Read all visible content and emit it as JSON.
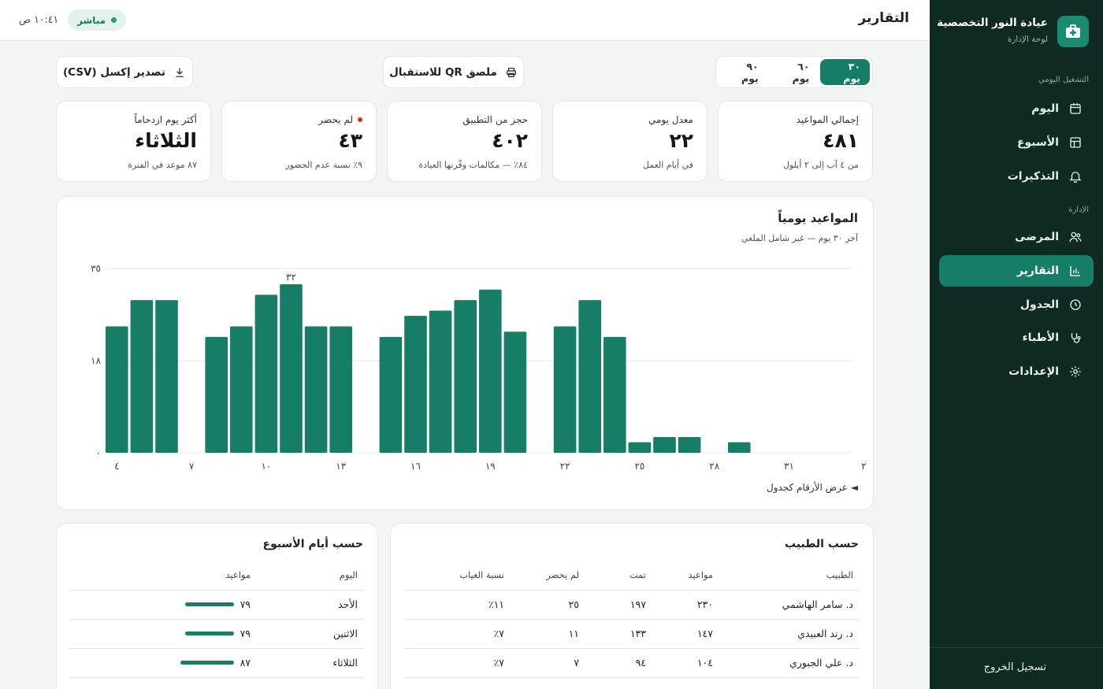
{
  "sidebar": {
    "brand_title": "عيادة النور التخصصية",
    "brand_subtitle": "لوحة الإدارة",
    "section_daily": "التشغيل اليومي",
    "section_admin": "الإدارة",
    "items": [
      {
        "label": "اليوم",
        "icon": "calendar-icon"
      },
      {
        "label": "الأسبوع",
        "icon": "week-grid-icon"
      },
      {
        "label": "التذكيرات",
        "icon": "bell-icon"
      },
      {
        "label": "المرضى",
        "icon": "users-icon"
      },
      {
        "label": "التقارير",
        "icon": "bar-chart-icon",
        "active": true
      },
      {
        "label": "الجدول",
        "icon": "clock-icon"
      },
      {
        "label": "الأطباء",
        "icon": "stethoscope-icon"
      },
      {
        "label": "الإعدادات",
        "icon": "gear-icon"
      }
    ],
    "logout": "تسجيل الخروج"
  },
  "header": {
    "title": "التقارير",
    "live": "مباشر",
    "time": "١٠:٤١ ص"
  },
  "toolbar": {
    "ranges": [
      "٣٠ يوم",
      "٦٠ يوم",
      "٩٠ يوم"
    ],
    "active_range": 0,
    "qr_label": "ملصق QR للاستقبال",
    "export_label": "تصدير إكسل (CSV)"
  },
  "stats": [
    {
      "label": "إجمالي المواعيد",
      "value": "٤٨١",
      "sub": "من ٤ آب إلى ٢ أيلول"
    },
    {
      "label": "معدل يومي",
      "value": "٢٢",
      "sub": "في أيام العمل"
    },
    {
      "label": "حجز من التطبيق",
      "value": "٤٠٢",
      "sub": "٨٤٪ — مكالمات وفّرتها العيادة"
    },
    {
      "label": "لم يحضر",
      "value": "٤٣",
      "sub": "٩٪ نسبة عدم الحضور"
    },
    {
      "label": "أكثر يوم ازدحاماً",
      "value": "الثلاثاء",
      "sub": "٨٧ موعد في الفترة"
    }
  ],
  "chart": {
    "title": "المواعيد يومياً",
    "subtitle": "آخر ٣٠ يوم — غير شامل الملغي",
    "toggle": "◄ عرض الأرقام كجدول"
  },
  "chart_data": {
    "type": "bar",
    "categories": [
      "4",
      "5",
      "6",
      "7",
      "8",
      "9",
      "10",
      "11",
      "12",
      "13",
      "14",
      "15",
      "16",
      "17",
      "18",
      "19",
      "20",
      "21",
      "22",
      "23",
      "24",
      "25",
      "26",
      "27",
      "28",
      "29",
      "30",
      "31",
      "1",
      "2"
    ],
    "values": [
      24,
      29,
      29,
      0,
      22,
      24,
      30,
      32,
      24,
      24,
      0,
      22,
      26,
      27,
      29,
      31,
      23,
      0,
      24,
      29,
      22,
      2,
      3,
      3,
      0,
      2,
      0,
      0,
      0,
      0
    ],
    "ylim": [
      0,
      35
    ],
    "y_ticks": [
      "٠",
      "١٨",
      "٣٥"
    ],
    "x_tick_labels": [
      "٤",
      "٧",
      "١٠",
      "١٣",
      "١٦",
      "١٩",
      "٢٢",
      "٢٥",
      "٢٨",
      "٣١",
      "٢"
    ],
    "max_label": "٣٢",
    "max_label_index": 7,
    "grid": true,
    "bar_color": "#167d66"
  },
  "doctors_table": {
    "title": "حسب الطبيب",
    "headers": [
      "الطبيب",
      "مواعيد",
      "تمت",
      "لم يحضر",
      "نسبة الغياب"
    ],
    "rows": [
      [
        "د. سامر الهاشمي",
        "٢٣٠",
        "١٩٧",
        "٢٥",
        "١١٪"
      ],
      [
        "د. رند العبيدي",
        "١٤٧",
        "١٣٣",
        "١١",
        "٧٪"
      ],
      [
        "د. علي الجبوري",
        "١٠٤",
        "٩٤",
        "٧",
        "٧٪"
      ]
    ]
  },
  "weekday_table": {
    "title": "حسب أيام الأسبوع",
    "headers": [
      "اليوم",
      "مواعيد"
    ],
    "rows": [
      {
        "day": "الأحد",
        "count": "٧٩",
        "value": 79
      },
      {
        "day": "الاثنين",
        "count": "٧٩",
        "value": 79
      },
      {
        "day": "الثلاثاء",
        "count": "٨٧",
        "value": 87
      }
    ],
    "max": 87
  }
}
